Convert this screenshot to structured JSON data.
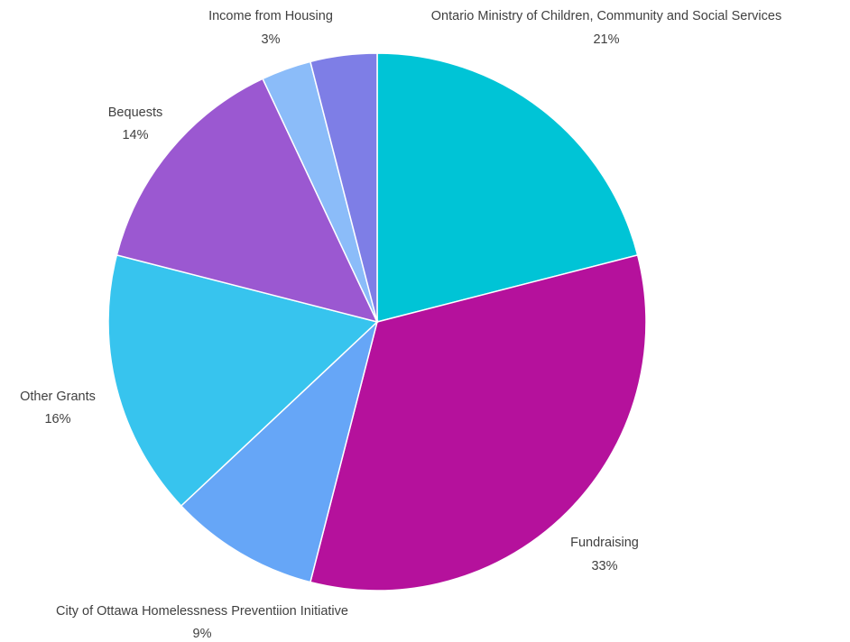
{
  "chart_data": {
    "type": "pie",
    "start_angle_deg": 0,
    "direction": "clockwise",
    "slices": [
      {
        "label": "Ontario Ministry of Children, Community and Social Services",
        "value": 21,
        "value_label": "21%",
        "color": "#00c4d6"
      },
      {
        "label": "Fundraising",
        "value": 33,
        "value_label": "33%",
        "color": "#b5119c"
      },
      {
        "label": "City of Ottawa Homelessness Preventiion Initiative",
        "value": 9,
        "value_label": "9%",
        "color": "#66a6f7"
      },
      {
        "label": "Other Grants",
        "value": 16,
        "value_label": "16%",
        "color": "#37c4ee"
      },
      {
        "label": "Bequests",
        "value": 14,
        "value_label": "14%",
        "color": "#9b58d1"
      },
      {
        "label": "Income from Housing",
        "value": 3,
        "value_label": "3%",
        "color": "#8bbcf9"
      },
      {
        "label": "",
        "value": 4,
        "value_label": "",
        "color": "#7e7ee6"
      }
    ]
  }
}
